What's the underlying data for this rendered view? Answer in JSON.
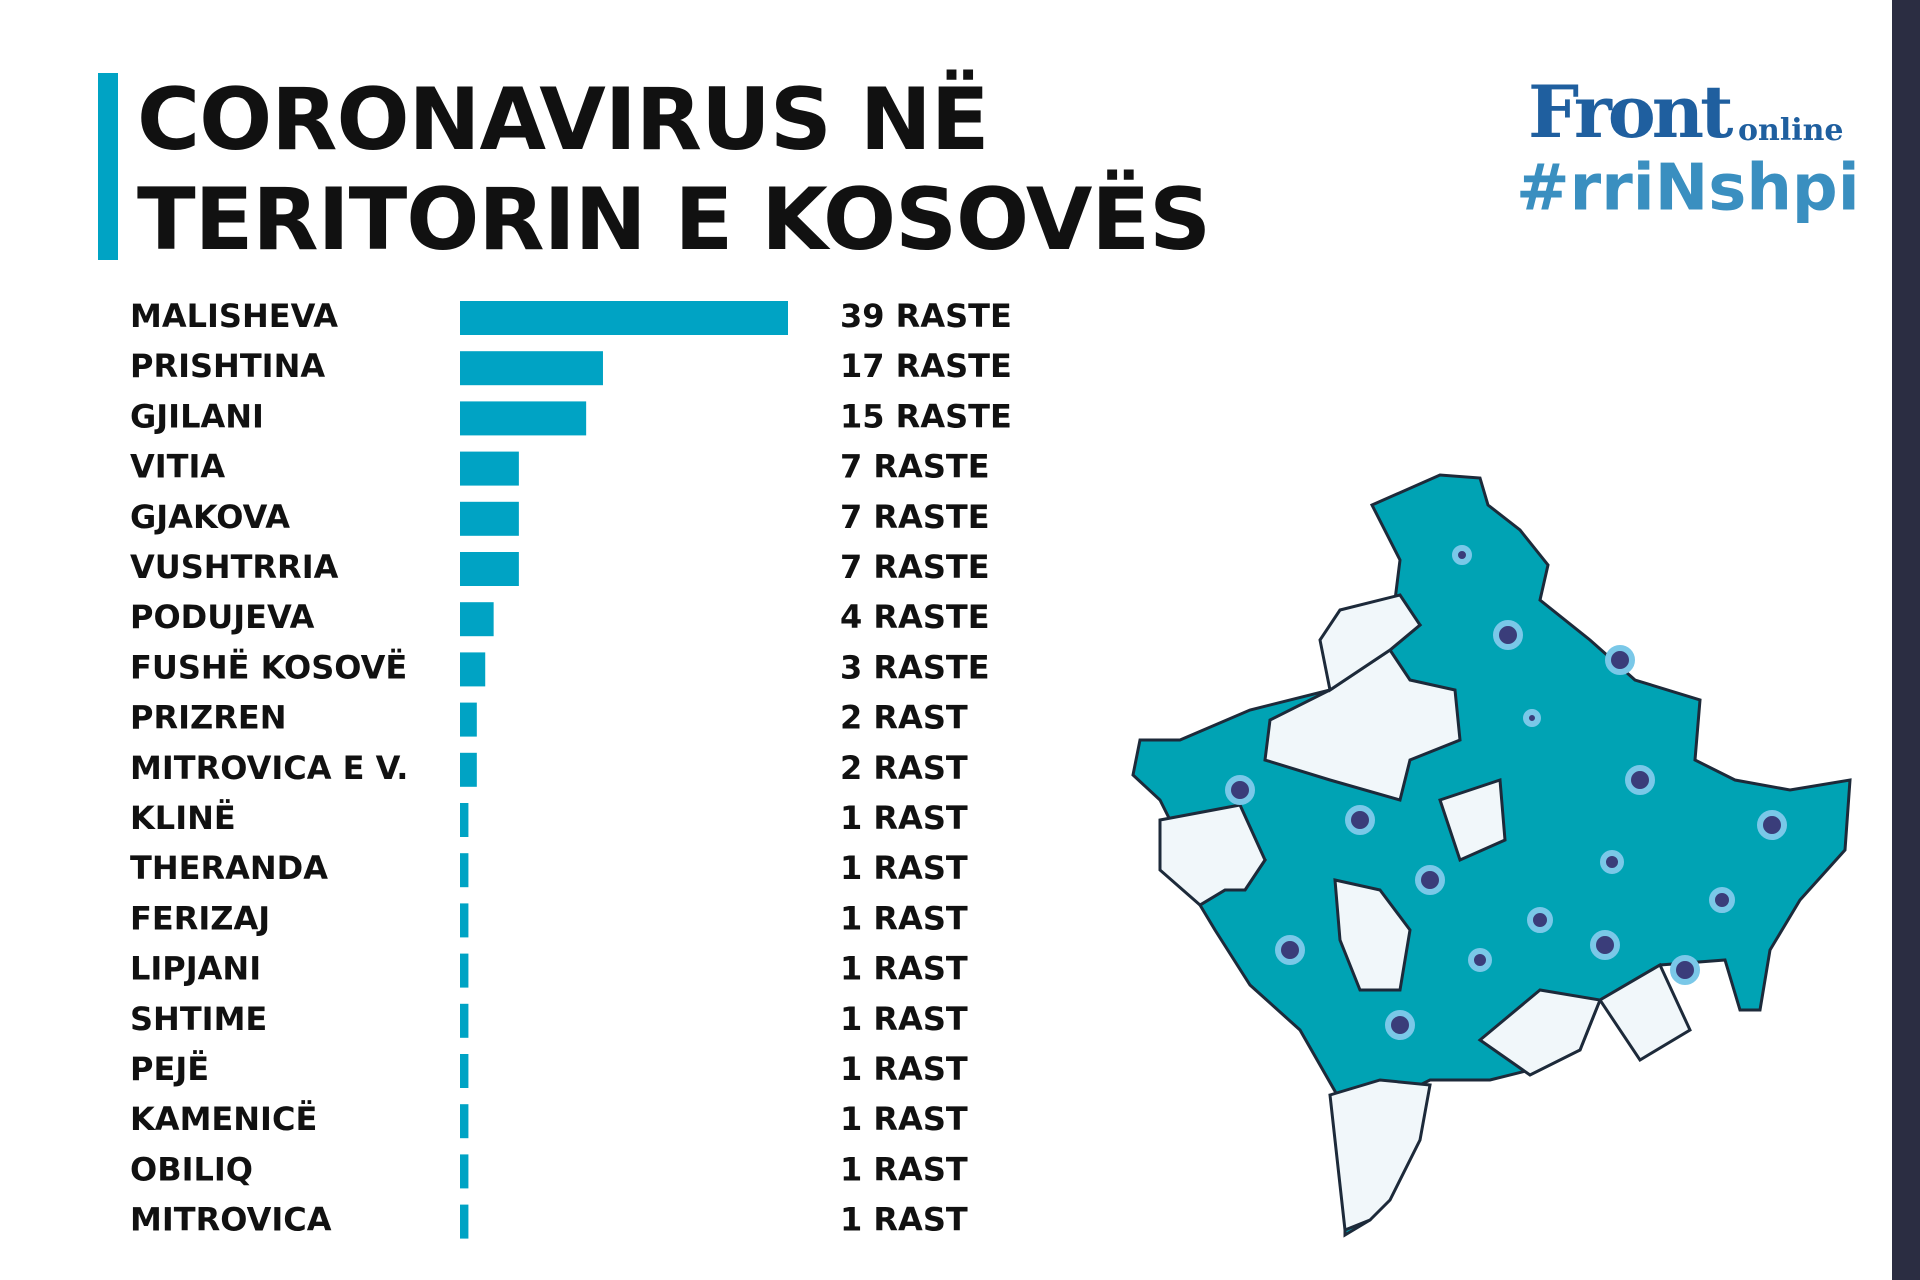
{
  "chart_data": {
    "type": "bar",
    "title": "CORONAVIRUS NË TERITORIN E KOSOVËS",
    "categories": [
      "MALISHEVA",
      "PRISHTINA",
      "GJILANI",
      "VITIA",
      "GJAKOVA",
      "VUSHTRRIA",
      "PODUJEVA",
      "FUSHË KOSOVË",
      "PRIZREN",
      "MITROVICA E V.",
      "KLINË",
      "THERANDA",
      "FERIZAJ",
      "LIPJANI",
      "SHTIME",
      "PEJË",
      "KAMENICË",
      "OBILIQ",
      "MITROVICA"
    ],
    "values": [
      39,
      17,
      15,
      7,
      7,
      7,
      4,
      3,
      2,
      2,
      1,
      1,
      1,
      1,
      1,
      1,
      1,
      1,
      1
    ],
    "value_labels": [
      "39 RASTE",
      "17 RASTE",
      "15 RASTE",
      "7 RASTE",
      "7 RASTE",
      "7 RASTE",
      "4 RASTE",
      "3 RASTE",
      "2 RAST",
      "2 RAST",
      "1 RAST",
      "1 RAST",
      "1 RAST",
      "1 RAST",
      "1 RAST",
      "1 RAST",
      "1 RAST",
      "1 RAST",
      "1 RAST"
    ],
    "color": "#00a3c4"
  },
  "logo": {
    "name": "Front",
    "suffix": "online",
    "hashtag": "#rriNshpi"
  }
}
